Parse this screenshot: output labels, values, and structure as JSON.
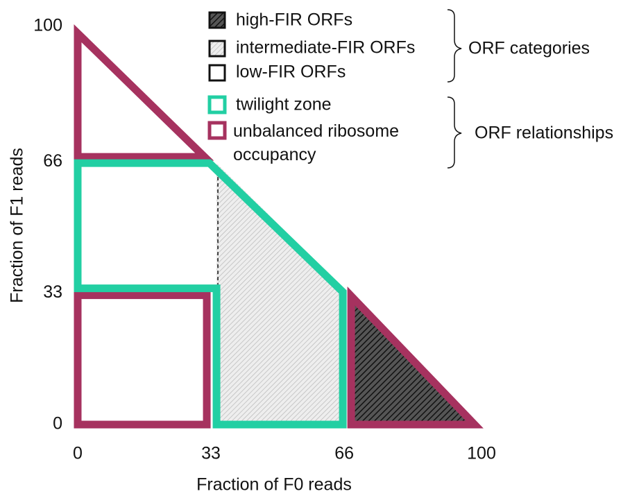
{
  "chart_data": {
    "type": "region",
    "xlabel": "Fraction of F0 reads",
    "ylabel": "Fraction of F1 reads",
    "xlim": [
      0,
      100
    ],
    "ylim": [
      0,
      100
    ],
    "xticks": [
      0,
      33,
      66,
      100
    ],
    "yticks": [
      0,
      33,
      66,
      100
    ],
    "legend_groups": [
      {
        "label": "ORF categories",
        "items": [
          "high-FIR ORFs",
          "intermediate-FIR ORFs",
          "low-FIR ORFs"
        ]
      },
      {
        "label": "ORF relationships",
        "items": [
          "twilight zone",
          "unbalanced ribosome occupancy"
        ]
      }
    ],
    "twilight_color": "#22cfa3",
    "unbalanced_color": "#a6325f"
  }
}
